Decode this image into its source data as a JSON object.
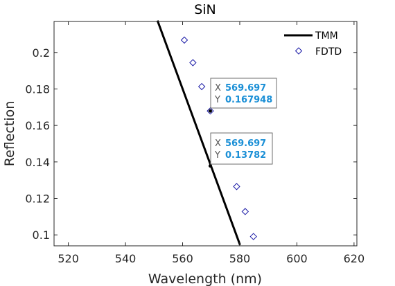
{
  "chart_data": {
    "type": "line",
    "title": "SiN",
    "xlabel": "Wavelength (nm)",
    "ylabel": "Reflection",
    "xlim": [
      515,
      621
    ],
    "ylim": [
      0.094,
      0.217
    ],
    "xticks": [
      520,
      540,
      560,
      580,
      600,
      620
    ],
    "yticks": [
      0.1,
      0.12,
      0.14,
      0.16,
      0.18,
      0.2
    ],
    "ytick_labels": [
      "0.1",
      "0.12",
      "0.14",
      "0.16",
      "0.18",
      "0.2"
    ],
    "grid": false,
    "legend_position": "top-right",
    "series": [
      {
        "name": "TMM",
        "style": "line",
        "color": "#000000",
        "x": [
          551.2,
          580.1
        ],
        "y": [
          0.2175,
          0.0945
        ]
      },
      {
        "name": "FDTD",
        "style": "marker-diamond",
        "color": "#1a1aa6",
        "x": [
          560.6,
          563.6,
          566.7,
          569.697,
          578.9,
          581.9,
          584.8
        ],
        "y": [
          0.2068,
          0.1944,
          0.1813,
          0.167948,
          0.1265,
          0.1128,
          0.0991
        ]
      }
    ],
    "datatips": [
      {
        "x_key": "X",
        "x_value": "569.697",
        "y_key": "Y",
        "y_value": "0.167948",
        "x": 569.697,
        "y": 0.167948
      },
      {
        "x_key": "X",
        "x_value": "569.697",
        "y_key": "Y",
        "y_value": "0.13782",
        "x": 569.697,
        "y": 0.13782
      }
    ]
  }
}
